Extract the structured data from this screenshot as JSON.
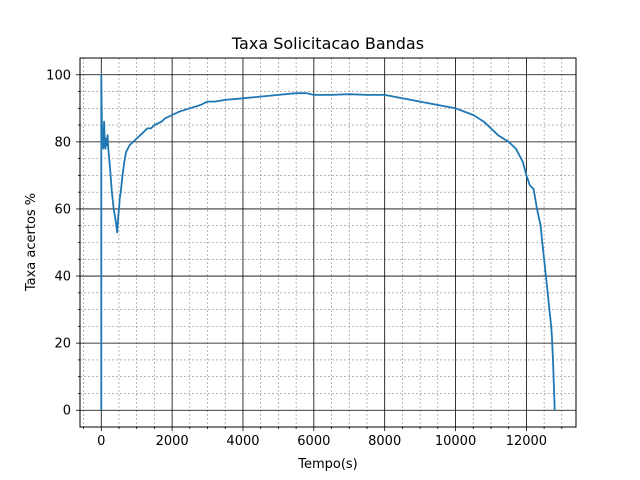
{
  "chart_data": {
    "type": "line",
    "title": "Taxa Solicitacao Bandas",
    "xlabel": "Tempo(s)",
    "ylabel": "Taxa acertos %",
    "xlim": [
      -600,
      13400
    ],
    "ylim": [
      -5,
      105
    ],
    "xticks": [
      0,
      2000,
      4000,
      6000,
      8000,
      10000,
      12000
    ],
    "yticks": [
      0,
      20,
      40,
      60,
      80,
      100
    ],
    "grid": "major and minor",
    "series": [
      {
        "color": "#1f77b4",
        "x": [
          0,
          0,
          10,
          20,
          40,
          60,
          80,
          100,
          120,
          140,
          160,
          180,
          200,
          250,
          300,
          350,
          400,
          450,
          480,
          500,
          520,
          550,
          600,
          650,
          700,
          800,
          900,
          1000,
          1100,
          1200,
          1300,
          1400,
          1500,
          1600,
          1700,
          1800,
          2000,
          2200,
          2500,
          2800,
          3000,
          3200,
          3500,
          4000,
          4500,
          5000,
          5500,
          5800,
          6000,
          6500,
          7000,
          7500,
          8000,
          8500,
          9000,
          9500,
          10000,
          10500,
          10800,
          11000,
          11200,
          11500,
          11700,
          11900,
          12000,
          12100,
          12200,
          12250,
          12300,
          12400,
          12450,
          12500,
          12550,
          12600,
          12650,
          12700,
          12720,
          12750,
          12800
        ],
        "y": [
          0,
          100,
          92,
          84,
          80,
          78,
          86,
          80,
          78,
          81,
          79,
          82,
          78,
          72,
          65,
          60,
          57,
          53,
          58,
          60,
          63,
          65,
          70,
          74,
          77,
          79,
          80,
          81,
          82,
          83,
          84,
          84,
          85,
          85.5,
          86,
          87,
          88,
          89,
          90,
          91,
          92,
          92,
          92.5,
          93,
          93.5,
          94,
          94.5,
          94.5,
          94,
          94,
          94.2,
          94,
          94,
          93,
          92,
          91,
          90,
          88,
          86,
          84,
          82,
          80,
          78,
          74,
          70,
          67,
          66,
          63,
          60,
          55,
          50,
          45,
          40,
          35,
          30,
          25,
          22,
          15,
          0
        ]
      }
    ]
  }
}
